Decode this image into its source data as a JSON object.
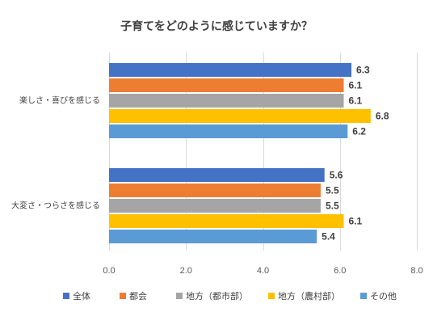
{
  "chart_data": {
    "type": "bar",
    "orientation": "horizontal",
    "title": "子育てをどのように感じていますか？",
    "categories": [
      "楽しさ・喜びを感じる",
      "大変さ・つらさを感じる"
    ],
    "series": [
      {
        "name": "全体",
        "color": "#4472C4",
        "values": [
          6.3,
          5.6
        ],
        "labels": [
          "6.3",
          "5.6"
        ]
      },
      {
        "name": "都会",
        "color": "#ED7D31",
        "values": [
          6.1,
          5.5
        ],
        "labels": [
          "6.1",
          "5.5"
        ]
      },
      {
        "name": "地方（都市部）",
        "color": "#A5A5A5",
        "values": [
          6.1,
          5.5
        ],
        "labels": [
          "6.1",
          "5.5"
        ]
      },
      {
        "name": "地方（農村部）",
        "color": "#FFC000",
        "values": [
          6.8,
          6.1
        ],
        "labels": [
          "6.8",
          "6.1"
        ]
      },
      {
        "name": "その他",
        "color": "#5B9BD5",
        "values": [
          6.2,
          5.4
        ],
        "labels": [
          "6.2",
          "5.4"
        ]
      }
    ],
    "xlim": [
      0,
      8
    ],
    "xticks": [
      0,
      2,
      4,
      6,
      8
    ],
    "xtick_labels": [
      "0.0",
      "2.0",
      "4.0",
      "6.0",
      "8.0"
    ],
    "xlabel": "",
    "ylabel": "",
    "grid": true,
    "legend": "bottom"
  }
}
